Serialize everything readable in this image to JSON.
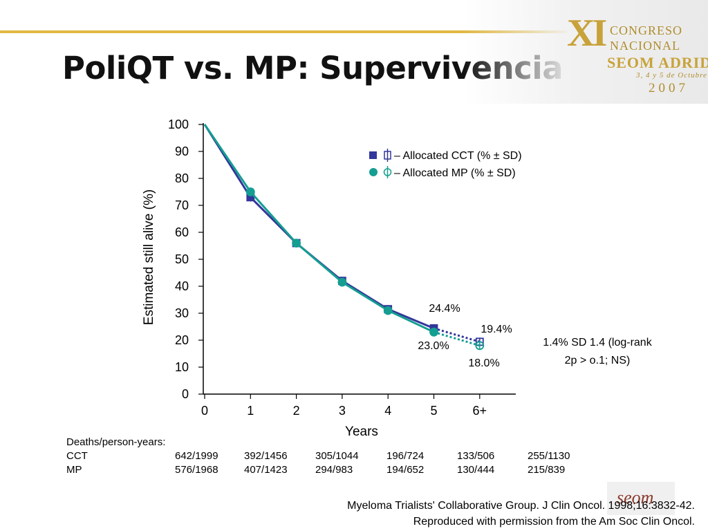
{
  "slide": {
    "title": "PoliQT vs. MP: Supervivencia",
    "logo": {
      "roman": "XI",
      "line1": "CONGRESO",
      "line2": "NACIONAL",
      "line3": "SEOM ADRID",
      "line4": "3, 4 y 5 de Octubre",
      "line5": "2007"
    },
    "accent_color": "#e1b843",
    "citation": {
      "line1": "Myeloma Trialists' Collaborative Group. J Clin Oncol. 1998;16:3832-42.",
      "line2": "Reproduced with permission from the Am Soc Clin Oncol."
    }
  },
  "chart_data": {
    "type": "line",
    "xlabel": "Years",
    "ylabel": "Estimated still alive (%)",
    "categories": [
      "0",
      "1",
      "2",
      "3",
      "4",
      "5",
      "6+"
    ],
    "yticks": [
      "0",
      "10",
      "20",
      "30",
      "40",
      "50",
      "60",
      "70",
      "80",
      "90",
      "100"
    ],
    "ylim": [
      0,
      100
    ],
    "grid": false,
    "legend_position": "top-right",
    "series": [
      {
        "name": "– Allocated CCT (% ± SD)",
        "marker": "square",
        "color": "#33369a",
        "values": [
          100,
          73,
          56,
          42,
          31.5,
          24.4,
          19.4
        ],
        "dotted_from_index": 5
      },
      {
        "name": "– Allocated MP (% ± SD)",
        "marker": "circle",
        "color": "#159e92",
        "values": [
          100,
          75,
          56,
          41.5,
          31,
          23,
          18
        ],
        "dotted_from_index": 5
      }
    ],
    "value_labels": {
      "cct_5": "24.4%",
      "mp_5": "23.0%",
      "cct_6": "19.4%",
      "mp_6": "18.0%"
    },
    "annotation": {
      "line1": "1.4% SD 1.4 (log-rank",
      "line2": "2p > o.1; NS)"
    },
    "deaths_table": {
      "header": "Deaths/person-years:",
      "rows": [
        {
          "label": "CCT",
          "values": [
            "642/1999",
            "392/1456",
            "305/1044",
            "196/724",
            "133/506",
            "255/1130"
          ]
        },
        {
          "label": "MP",
          "values": [
            "576/1968",
            "407/1423",
            "294/983",
            "194/652",
            "130/444",
            "215/839"
          ]
        }
      ]
    }
  }
}
